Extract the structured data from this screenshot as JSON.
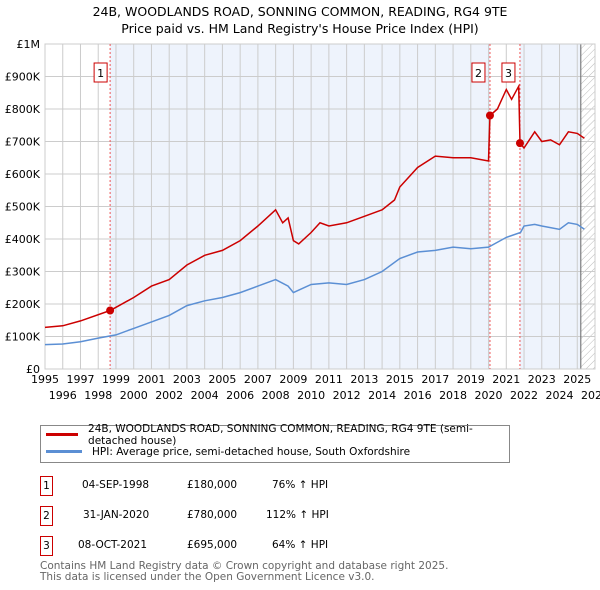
{
  "chart_data": {
    "type": "line",
    "title": "24B, WOODLANDS ROAD, SONNING COMMON, READING, RG4 9TE",
    "subtitle": "Price paid vs. HM Land Registry's House Price Index (HPI)",
    "xlim": [
      1995,
      2026
    ],
    "ylim": [
      0,
      1000000
    ],
    "x_ticks": [
      "1995",
      "1996",
      "1997",
      "1998",
      "1999",
      "2000",
      "2001",
      "2002",
      "2003",
      "2004",
      "2005",
      "2006",
      "2007",
      "2008",
      "2009",
      "2010",
      "2011",
      "2012",
      "2013",
      "2014",
      "2015",
      "2016",
      "2017",
      "2018",
      "2019",
      "2020",
      "2021",
      "2022",
      "2023",
      "2024",
      "2025",
      "2026"
    ],
    "y_ticks": [
      {
        "v": 0,
        "l": "£0"
      },
      {
        "v": 100000,
        "l": "£100K"
      },
      {
        "v": 200000,
        "l": "£200K"
      },
      {
        "v": 300000,
        "l": "£300K"
      },
      {
        "v": 400000,
        "l": "£400K"
      },
      {
        "v": 500000,
        "l": "£500K"
      },
      {
        "v": 600000,
        "l": "£600K"
      },
      {
        "v": 700000,
        "l": "£700K"
      },
      {
        "v": 800000,
        "l": "£800K"
      },
      {
        "v": 900000,
        "l": "£900K"
      },
      {
        "v": 1000000,
        "l": "£1M"
      }
    ],
    "grid": true,
    "series": [
      {
        "name": "24B, WOODLANDS ROAD, SONNING COMMON, READING, RG4 9TE (semi-detached house)",
        "color": "#cc0000",
        "points": [
          [
            1995,
            128000
          ],
          [
            1996,
            133000
          ],
          [
            1997,
            148000
          ],
          [
            1998.67,
            180000
          ],
          [
            1999,
            190000
          ],
          [
            2000,
            220000
          ],
          [
            2001,
            255000
          ],
          [
            2002,
            275000
          ],
          [
            2003,
            320000
          ],
          [
            2004,
            350000
          ],
          [
            2005,
            365000
          ],
          [
            2006,
            395000
          ],
          [
            2007,
            440000
          ],
          [
            2008,
            490000
          ],
          [
            2008.4,
            450000
          ],
          [
            2008.7,
            465000
          ],
          [
            2009,
            395000
          ],
          [
            2009.3,
            385000
          ],
          [
            2010,
            420000
          ],
          [
            2010.5,
            450000
          ],
          [
            2011,
            440000
          ],
          [
            2012,
            450000
          ],
          [
            2013,
            470000
          ],
          [
            2014,
            490000
          ],
          [
            2014.7,
            520000
          ],
          [
            2015,
            560000
          ],
          [
            2016,
            620000
          ],
          [
            2017,
            655000
          ],
          [
            2018,
            650000
          ],
          [
            2019,
            650000
          ],
          [
            2020,
            640000
          ],
          [
            2020.08,
            780000
          ],
          [
            2020.5,
            800000
          ],
          [
            2021,
            860000
          ],
          [
            2021.3,
            830000
          ],
          [
            2021.7,
            870000
          ],
          [
            2021.77,
            695000
          ],
          [
            2022,
            680000
          ],
          [
            2022.6,
            730000
          ],
          [
            2023,
            700000
          ],
          [
            2023.5,
            705000
          ],
          [
            2024,
            690000
          ],
          [
            2024.5,
            730000
          ],
          [
            2025,
            725000
          ],
          [
            2025.4,
            710000
          ]
        ]
      },
      {
        "name": "HPI: Average price, semi-detached house, South Oxfordshire",
        "color": "#5b8fd4",
        "points": [
          [
            1995,
            75000
          ],
          [
            1996,
            77000
          ],
          [
            1997,
            84000
          ],
          [
            1998,
            95000
          ],
          [
            1999,
            105000
          ],
          [
            2000,
            125000
          ],
          [
            2001,
            145000
          ],
          [
            2002,
            165000
          ],
          [
            2003,
            195000
          ],
          [
            2004,
            210000
          ],
          [
            2005,
            220000
          ],
          [
            2006,
            235000
          ],
          [
            2007,
            255000
          ],
          [
            2008,
            275000
          ],
          [
            2008.7,
            255000
          ],
          [
            2009,
            235000
          ],
          [
            2010,
            260000
          ],
          [
            2011,
            265000
          ],
          [
            2012,
            260000
          ],
          [
            2013,
            275000
          ],
          [
            2014,
            300000
          ],
          [
            2015,
            340000
          ],
          [
            2016,
            360000
          ],
          [
            2017,
            365000
          ],
          [
            2018,
            375000
          ],
          [
            2019,
            370000
          ],
          [
            2020,
            375000
          ],
          [
            2021,
            405000
          ],
          [
            2021.8,
            420000
          ],
          [
            2022,
            440000
          ],
          [
            2022.6,
            445000
          ],
          [
            2023,
            440000
          ],
          [
            2024,
            430000
          ],
          [
            2024.5,
            450000
          ],
          [
            2025,
            445000
          ],
          [
            2025.4,
            430000
          ]
        ]
      }
    ],
    "sales": [
      {
        "id": "1",
        "x": 1998.67,
        "y": 180000
      },
      {
        "id": "2",
        "x": 2020.08,
        "y": 780000
      },
      {
        "id": "3",
        "x": 2021.77,
        "y": 695000
      }
    ]
  },
  "legend": [
    "24B, WOODLANDS ROAD, SONNING COMMON, READING, RG4 9TE (semi-detached house)",
    "HPI: Average price, semi-detached house, South Oxfordshire"
  ],
  "table": [
    {
      "id": "1",
      "date": "04-SEP-1998",
      "price": "£180,000",
      "hpi": "76% ↑ HPI"
    },
    {
      "id": "2",
      "date": "31-JAN-2020",
      "price": "£780,000",
      "hpi": "112% ↑ HPI"
    },
    {
      "id": "3",
      "date": "08-OCT-2021",
      "price": "£695,000",
      "hpi": "64% ↑ HPI"
    }
  ],
  "footer": [
    "Contains HM Land Registry data © Crown copyright and database right 2025.",
    "This data is licensed under the Open Government Licence v3.0."
  ]
}
